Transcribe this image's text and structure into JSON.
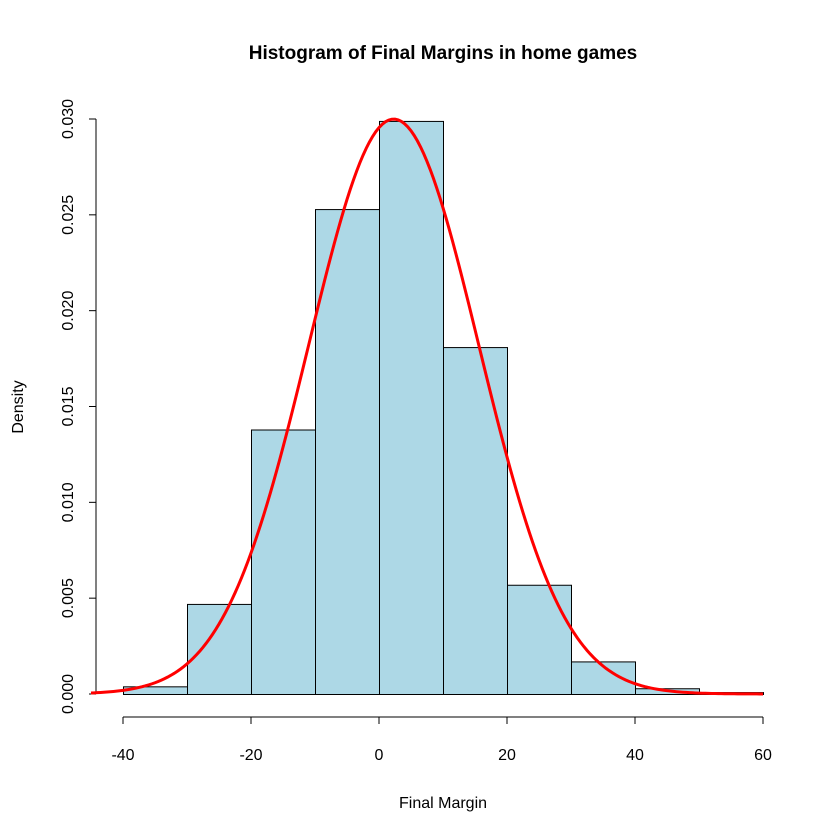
{
  "chart_data": {
    "type": "bar",
    "title": "Histogram of Final Margins in home games",
    "xlabel": "Final Margin",
    "ylabel": "Density",
    "xlim": [
      -40,
      60
    ],
    "ylim": [
      0,
      0.03
    ],
    "x_ticks": [
      "-40",
      "-20",
      "0",
      "20",
      "40",
      "60"
    ],
    "y_ticks": [
      "0.000",
      "0.005",
      "0.010",
      "0.015",
      "0.020",
      "0.025",
      "0.030"
    ],
    "bin_edges": [
      -40,
      -30,
      -20,
      -10,
      0,
      10,
      20,
      30,
      40,
      50,
      60
    ],
    "values": [
      0.0004,
      0.0047,
      0.0138,
      0.0253,
      0.0299,
      0.0181,
      0.0057,
      0.0017,
      0.0003,
      0.0001
    ],
    "density_curve": {
      "distribution": "normal",
      "mean": 2.3,
      "sd": 13.3,
      "color": "#ff0000"
    },
    "bar_fill": "#add8e6",
    "bar_stroke": "#000000",
    "grid": false
  }
}
